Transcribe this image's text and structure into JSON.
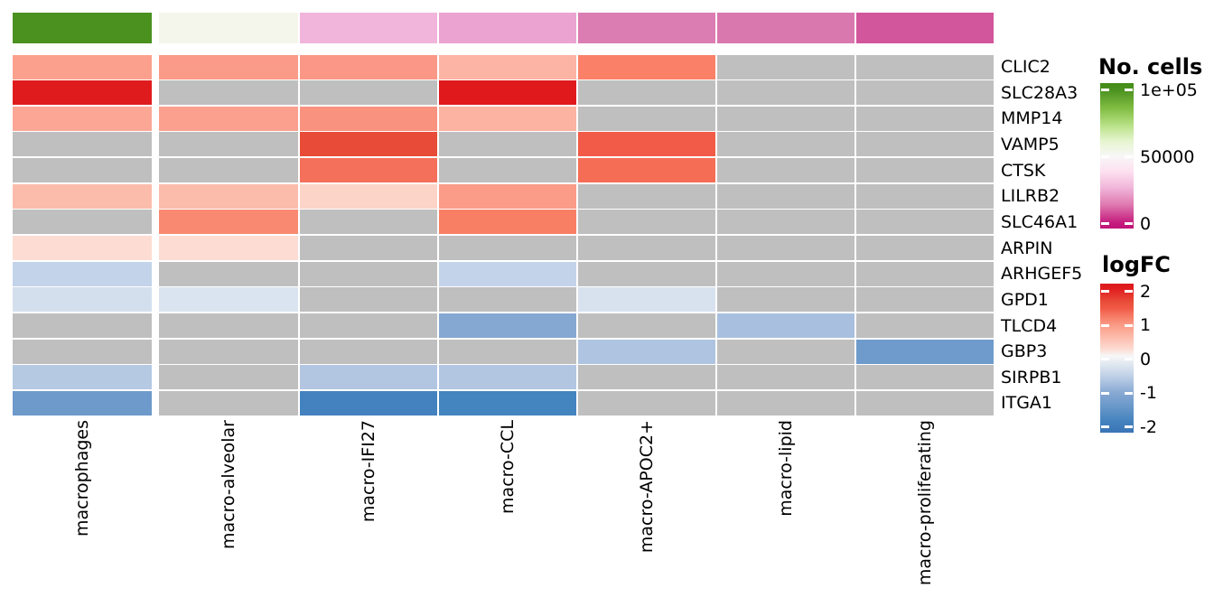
{
  "figure": {
    "background": "#FFFFFF",
    "na_color": "#BFBFBF"
  },
  "chart_data": {
    "type": "heatmap",
    "columns": [
      "macrophages",
      "macro-alveolar",
      "macro-IFI27",
      "macro-CCL",
      "macro-APOC2+",
      "macro-lipid",
      "macro-proliferating"
    ],
    "rows": [
      "CLIC2",
      "SLC28A3",
      "MMP14",
      "VAMP5",
      "CTSK",
      "LILRB2",
      "SLC46A1",
      "ARPIN",
      "ARHGEF5",
      "GPD1",
      "TLCD4",
      "GBP3",
      "SIRPB1",
      "ITGA1"
    ],
    "column_annotation": {
      "legend_title": "No. cells",
      "colors": [
        "#4A9120",
        "#F4F6EB",
        "#F1B5DC",
        "#EBA4D1",
        "#DB7CB3",
        "#D978AF",
        "#D1569B"
      ],
      "values_approx": [
        100000,
        52000,
        25000,
        22000,
        13000,
        12500,
        7000
      ]
    },
    "cells": {
      "note": "null = not significant (grey NA cell)",
      "colors": [
        [
          "#FCA08E",
          "#FA9A88",
          "#FA9786",
          "#FCB4A4",
          "#FA8168",
          null,
          null
        ],
        [
          "#E01B1E",
          null,
          null,
          "#E0191D",
          null,
          null,
          null
        ],
        [
          "#FCA796",
          "#FBA08F",
          "#FA9280",
          "#FCB3A2",
          null,
          null,
          null
        ],
        [
          null,
          null,
          "#E84C38",
          null,
          "#F25B47",
          null,
          null
        ],
        [
          null,
          null,
          "#F4705B",
          null,
          "#F66D55",
          null,
          null
        ],
        [
          "#FCBCAC",
          "#FCBCAC",
          "#FDD4C8",
          "#FA9C87",
          null,
          null,
          null
        ],
        [
          null,
          "#F98A71",
          null,
          "#F87F64",
          null,
          null,
          null
        ],
        [
          "#FCDCD3",
          "#FCDCD3",
          null,
          null,
          null,
          null,
          null
        ],
        [
          "#C3D3E9",
          null,
          null,
          "#C3D3E9",
          null,
          null,
          null
        ],
        [
          "#D4DFEE",
          "#DAE4F0",
          null,
          null,
          "#D8E2EF",
          null,
          null
        ],
        [
          null,
          null,
          null,
          "#85A8D2",
          null,
          "#A9BFDF",
          null
        ],
        [
          null,
          null,
          null,
          null,
          "#AFC4E1",
          null,
          "#6E9BCB"
        ],
        [
          "#B5C9E3",
          null,
          "#B2C6E2",
          "#B2C6E2",
          null,
          null,
          null
        ],
        [
          "#6D9ACA",
          null,
          "#4382BE",
          "#4484BF",
          null,
          null,
          null
        ]
      ],
      "logfc_approx": [
        [
          1.0,
          1.0,
          1.05,
          0.75,
          1.25,
          null,
          null
        ],
        [
          2.1,
          null,
          null,
          2.1,
          null,
          null,
          null
        ],
        [
          0.9,
          0.95,
          1.1,
          0.75,
          null,
          null,
          null
        ],
        [
          null,
          null,
          1.7,
          null,
          1.5,
          null,
          null
        ],
        [
          null,
          null,
          1.35,
          null,
          1.4,
          null,
          null
        ],
        [
          0.65,
          0.65,
          0.4,
          1.0,
          null,
          null,
          null
        ],
        [
          null,
          1.15,
          null,
          1.25,
          null,
          null,
          null
        ],
        [
          0.3,
          0.3,
          null,
          null,
          null,
          null,
          null
        ],
        [
          -0.55,
          null,
          null,
          -0.55,
          null,
          null,
          null
        ],
        [
          -0.4,
          -0.3,
          null,
          null,
          -0.35,
          null,
          null
        ],
        [
          null,
          null,
          null,
          -1.1,
          null,
          -0.8,
          null
        ],
        [
          null,
          null,
          null,
          null,
          -0.75,
          null,
          -1.45
        ],
        [
          -0.7,
          null,
          -0.75,
          -0.75,
          null,
          null,
          null
        ],
        [
          -1.45,
          null,
          -1.95,
          -1.95,
          null,
          null,
          null
        ]
      ]
    },
    "legends": [
      {
        "title": "No. cells",
        "ticks": [
          {
            "label": "1e+05",
            "value": 100000
          },
          {
            "label": "50000",
            "value": 50000
          },
          {
            "label": "0",
            "value": 0
          }
        ],
        "gradient": [
          {
            "pct": 0,
            "color": "#418C15"
          },
          {
            "pct": 5,
            "color": "#4D9221"
          },
          {
            "pct": 17,
            "color": "#7FBC41"
          },
          {
            "pct": 29,
            "color": "#B8E186"
          },
          {
            "pct": 40,
            "color": "#E6F5D0"
          },
          {
            "pct": 50,
            "color": "#F7F7F7"
          },
          {
            "pct": 61,
            "color": "#FDE0EF"
          },
          {
            "pct": 72,
            "color": "#F1B6DA"
          },
          {
            "pct": 84,
            "color": "#DE77AE"
          },
          {
            "pct": 96,
            "color": "#C51B7D"
          },
          {
            "pct": 100,
            "color": "#C01378"
          }
        ]
      },
      {
        "title": "logFC",
        "ticks": [
          {
            "label": "2",
            "value": 2
          },
          {
            "label": "1",
            "value": 1
          },
          {
            "label": "0",
            "value": 0
          },
          {
            "label": "-1",
            "value": -1
          },
          {
            "label": "-2",
            "value": -2
          }
        ],
        "gradient": [
          {
            "pct": 0,
            "color": "#DA1A1F"
          },
          {
            "pct": 3,
            "color": "#E01B1E"
          },
          {
            "pct": 12,
            "color": "#E84C38"
          },
          {
            "pct": 17,
            "color": "#F25B47"
          },
          {
            "pct": 20,
            "color": "#F4705B"
          },
          {
            "pct": 28,
            "color": "#FA9C87"
          },
          {
            "pct": 36,
            "color": "#FCBCAC"
          },
          {
            "pct": 44,
            "color": "#FCDCD3"
          },
          {
            "pct": 48.5,
            "color": "#F7F7F7"
          },
          {
            "pct": 56.5,
            "color": "#D6E1EE"
          },
          {
            "pct": 64.4,
            "color": "#B4C8E3"
          },
          {
            "pct": 73.5,
            "color": "#85A8D2"
          },
          {
            "pct": 81.4,
            "color": "#6D9ACA"
          },
          {
            "pct": 92.7,
            "color": "#4382BE"
          },
          {
            "pct": 100,
            "color": "#3B74B5"
          }
        ]
      }
    ]
  }
}
